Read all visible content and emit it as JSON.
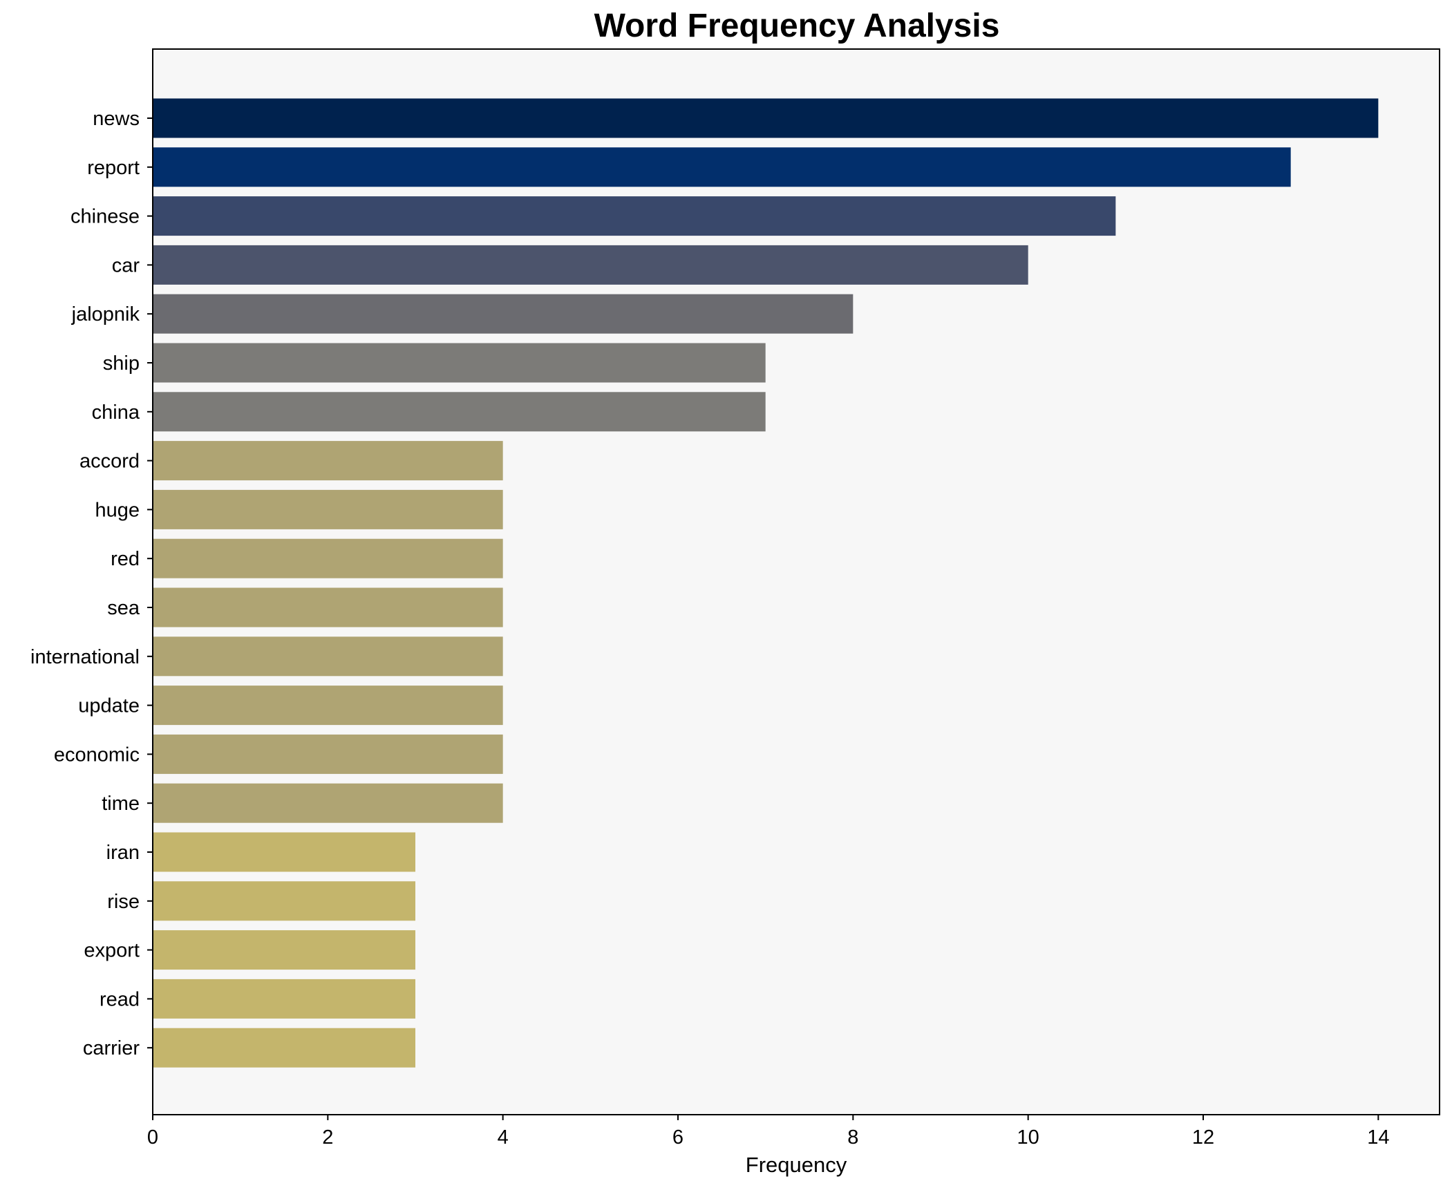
{
  "chart_data": {
    "type": "bar",
    "orientation": "horizontal",
    "title": "Word Frequency Analysis",
    "xlabel": "Frequency",
    "ylabel": "",
    "xlim": [
      0,
      14.7
    ],
    "xticks": [
      0,
      2,
      4,
      6,
      8,
      10,
      12,
      14
    ],
    "grid": false,
    "categories": [
      "news",
      "report",
      "chinese",
      "car",
      "jalopnik",
      "ship",
      "china",
      "accord",
      "huge",
      "red",
      "sea",
      "international",
      "update",
      "economic",
      "time",
      "iran",
      "rise",
      "export",
      "read",
      "carrier"
    ],
    "values": [
      14,
      13,
      11,
      10,
      8,
      7,
      7,
      4,
      4,
      4,
      4,
      4,
      4,
      4,
      4,
      3,
      3,
      3,
      3,
      3
    ],
    "colors": [
      "#00224e",
      "#022f6c",
      "#39486b",
      "#4c546c",
      "#6b6b70",
      "#7c7b78",
      "#7c7b78",
      "#afa473",
      "#afa473",
      "#afa473",
      "#afa473",
      "#afa473",
      "#afa473",
      "#afa473",
      "#afa473",
      "#c4b56c",
      "#c4b56c",
      "#c4b56c",
      "#c4b56c",
      "#c4b56c"
    ],
    "plot_background": "#f7f7f7"
  }
}
